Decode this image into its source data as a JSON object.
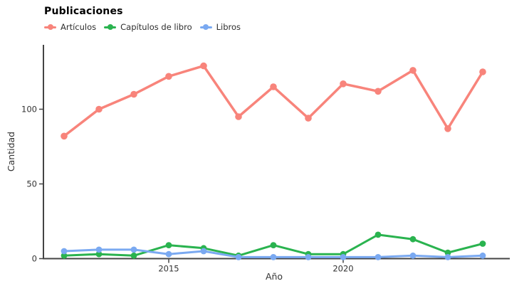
{
  "chart_data": {
    "type": "line",
    "title": "Publicaciones",
    "xlabel": "Año",
    "ylabel": "Cantidad",
    "x": [
      2012,
      2013,
      2014,
      2015,
      2016,
      2017,
      2018,
      2019,
      2020,
      2021,
      2022,
      2023,
      2024
    ],
    "series": [
      {
        "name": "Artículos",
        "color": "#F8847B",
        "values": [
          82,
          100,
          110,
          122,
          129,
          95,
          115,
          94,
          117,
          112,
          126,
          87,
          125
        ]
      },
      {
        "name": "Capítulos de libro",
        "color": "#2AB34F",
        "values": [
          2,
          3,
          2,
          9,
          7,
          2,
          9,
          3,
          3,
          16,
          13,
          4,
          10
        ]
      },
      {
        "name": "Libros",
        "color": "#7AA9F1",
        "values": [
          5,
          6,
          6,
          3,
          5,
          1,
          1,
          1,
          1,
          1,
          2,
          1,
          2
        ]
      }
    ],
    "x_ticks": [
      2015,
      2020
    ],
    "y_ticks": [
      0,
      50,
      100
    ],
    "ylim": [
      0,
      143
    ],
    "grid": false,
    "legend_position": "top-left",
    "axis_color": "#444444",
    "tick_text_color": "#333333",
    "background": "#ffffff"
  }
}
